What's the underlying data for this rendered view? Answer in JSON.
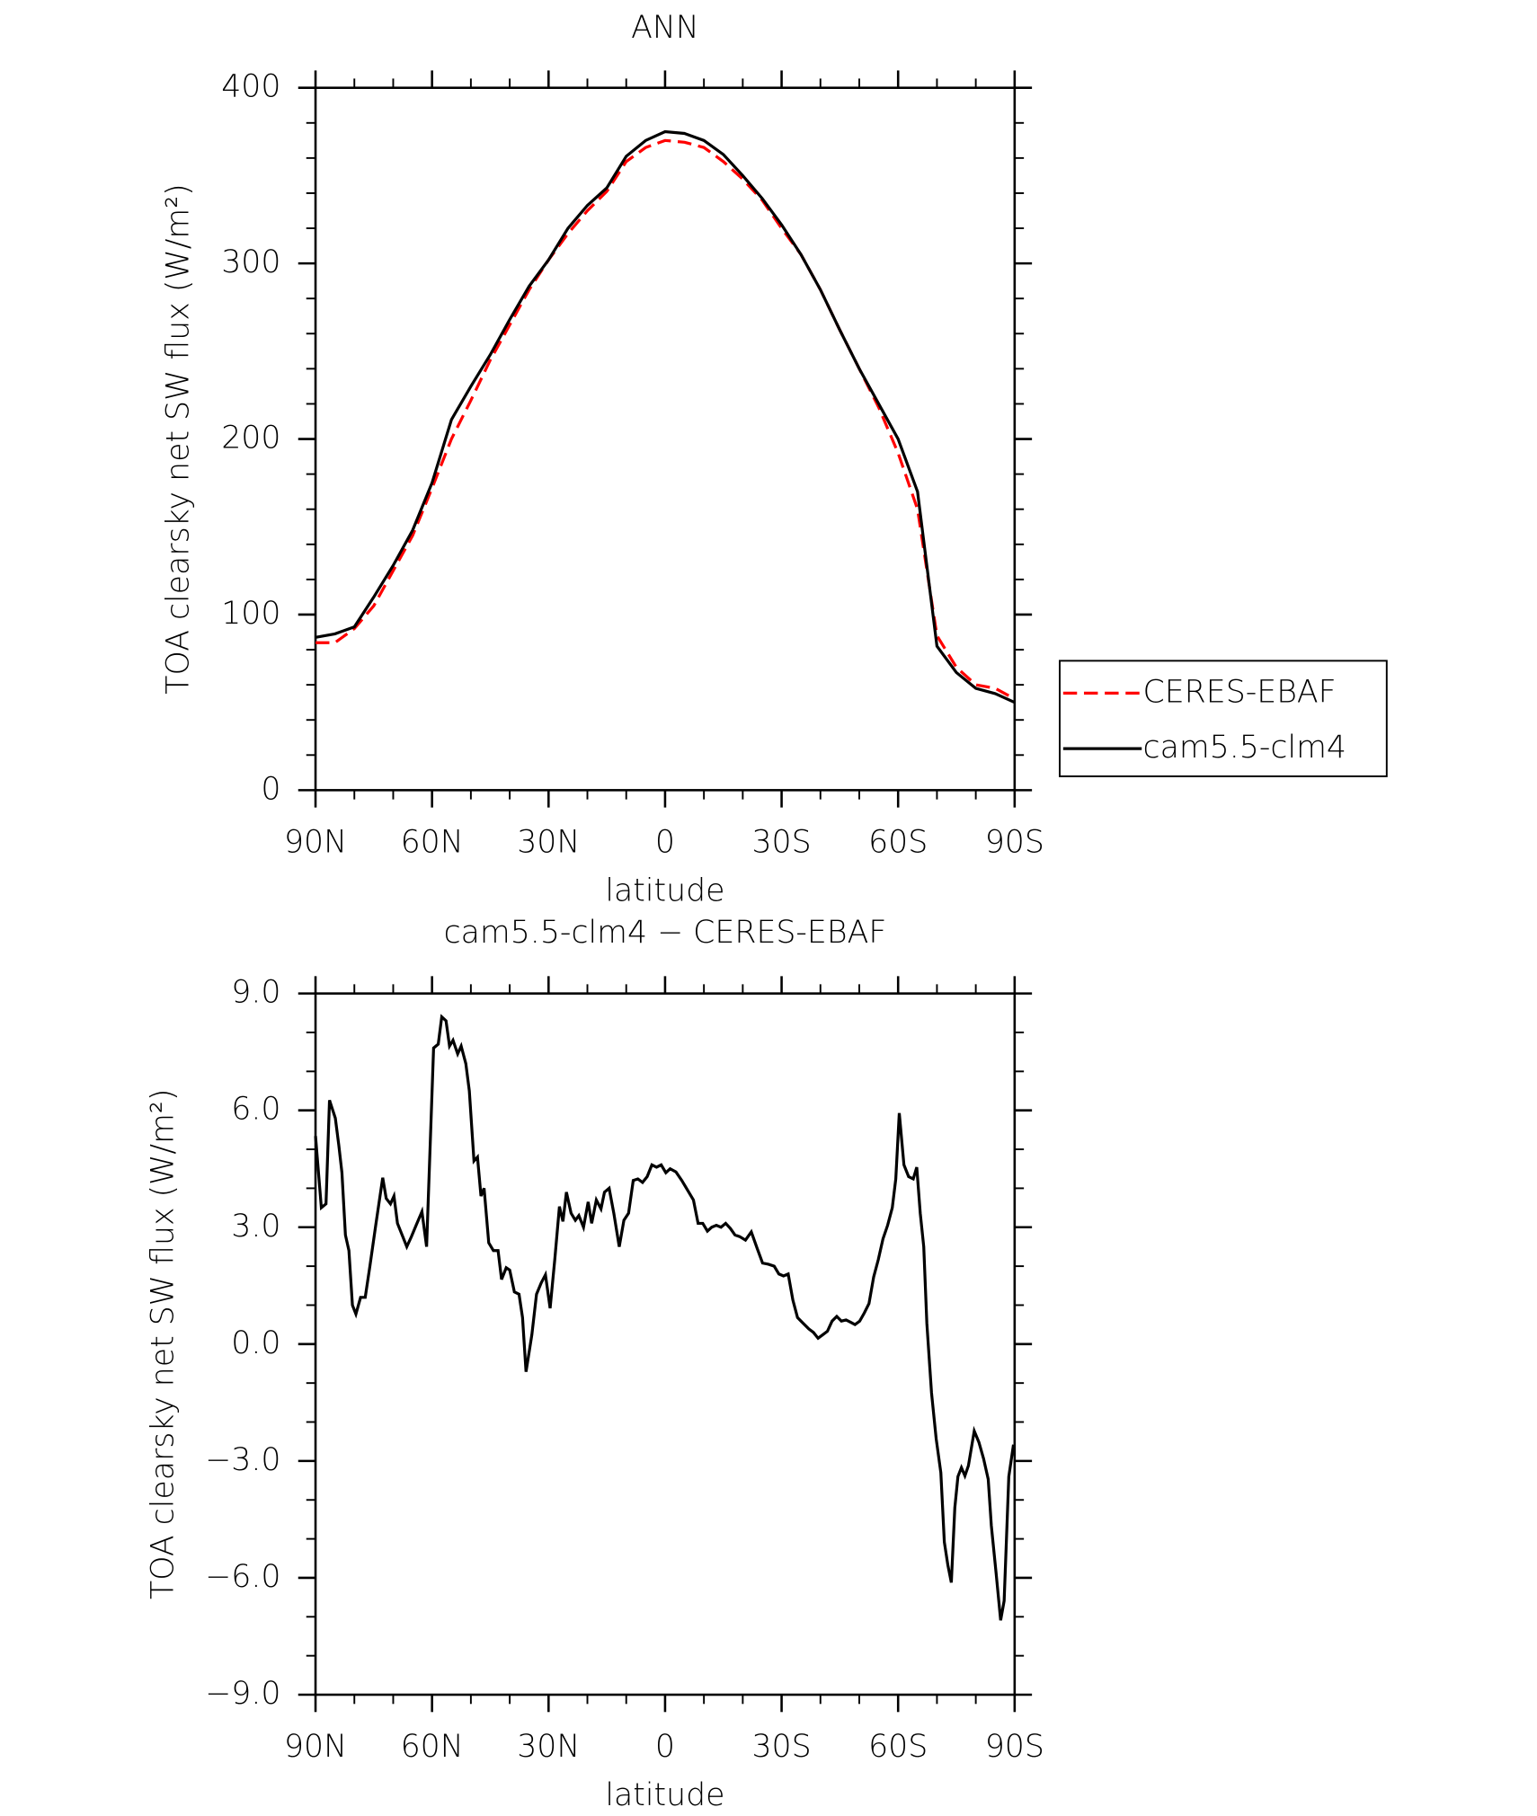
{
  "chart_data": [
    {
      "type": "line",
      "title": "ANN",
      "xlabel": "latitude",
      "ylabel": "TOA clearsky net SW flux (W/m²)",
      "x": [
        90,
        85,
        80,
        75,
        70,
        65,
        60,
        55,
        50,
        45,
        40,
        35,
        30,
        25,
        20,
        15,
        10,
        5,
        0,
        -5,
        -10,
        -15,
        -20,
        -25,
        -30,
        -35,
        -40,
        -45,
        -50,
        -55,
        -60,
        -65,
        -70,
        -75,
        -80,
        -85,
        -90
      ],
      "series": [
        {
          "name": "CERES-EBAF",
          "color": "#ff0000",
          "linestyle": "dashed",
          "values": [
            84,
            84,
            92,
            105,
            125,
            145,
            172,
            200,
            222,
            245,
            265,
            285,
            302,
            317,
            330,
            341,
            358,
            366,
            370,
            369,
            366,
            358,
            348,
            336,
            320,
            305,
            285,
            262,
            240,
            218,
            192,
            160,
            88,
            70,
            60,
            58,
            52
          ]
        },
        {
          "name": "cam5.5-clm4",
          "color": "#000000",
          "linestyle": "solid",
          "values": [
            87,
            89,
            93,
            110,
            128,
            148,
            175,
            211,
            230,
            248,
            268,
            287,
            302,
            320,
            333,
            343,
            361,
            370,
            375,
            374,
            370,
            362,
            350,
            337,
            322,
            305,
            285,
            262,
            240,
            220,
            200,
            170,
            82,
            67,
            58,
            55,
            50
          ]
        }
      ],
      "xlim": [
        90,
        -90
      ],
      "xticks": [
        {
          "value": 90,
          "label": "90N"
        },
        {
          "value": 60,
          "label": "60N"
        },
        {
          "value": 30,
          "label": "30N"
        },
        0,
        {
          "value": -30,
          "label": "30S"
        },
        {
          "value": -60,
          "label": "60S"
        },
        {
          "value": -90,
          "label": "90S"
        }
      ],
      "xminorticks": [
        80,
        70,
        50,
        40,
        20,
        10,
        -10,
        -20,
        -40,
        -50,
        -70,
        -80
      ],
      "ylim": [
        0,
        400
      ],
      "yticks": [
        0,
        100,
        200,
        300,
        400
      ],
      "yminorticks": [
        20,
        40,
        60,
        80,
        120,
        140,
        160,
        180,
        220,
        240,
        260,
        280,
        320,
        340,
        360,
        380
      ],
      "legend": "right"
    },
    {
      "type": "line",
      "title": "cam5.5-clm4 − CERES-EBAF",
      "xlabel": "latitude",
      "ylabel": "TOA clearsky net SW flux (W/m²)",
      "x": [
        90,
        88.5,
        87.3,
        86.4,
        84.9,
        84.0,
        83.2,
        82.3,
        81.4,
        80.5,
        79.6,
        78.4,
        77.2,
        76.0,
        74.5,
        72.7,
        71.8,
        70.7,
        69.8,
        68.9,
        67.7,
        66.5,
        65.3,
        64.1,
        62.6,
        61.4,
        59.6,
        58.4,
        57.5,
        56.4,
        55.5,
        54.6,
        53.4,
        52.5,
        51.3,
        50.4,
        49.2,
        48.3,
        47.4,
        46.6,
        45.4,
        44.2,
        43.0,
        42.1,
        40.9,
        40.0,
        38.8,
        37.6,
        36.7,
        35.8,
        34.3,
        33.1,
        31.9,
        30.8,
        29.6,
        28.4,
        27.2,
        26.3,
        25.4,
        24.2,
        23.1,
        22.2,
        21.0,
        19.8,
        18.9,
        17.7,
        16.5,
        15.6,
        14.4,
        13.2,
        11.8,
        10.6,
        9.4,
        8.2,
        7.0,
        5.8,
        4.6,
        3.4,
        2.2,
        1.0,
        -0.2,
        -1.3,
        -2.8,
        -4.3,
        -5.8,
        -7.3,
        -8.5,
        -9.7,
        -10.9,
        -12.0,
        -13.2,
        -14.4,
        -15.6,
        -16.8,
        -18.0,
        -19.2,
        -20.7,
        -22.2,
        -23.7,
        -25.1,
        -26.6,
        -28.1,
        -29.3,
        -30.5,
        -31.7,
        -32.9,
        -34.1,
        -35.6,
        -37.0,
        -38.2,
        -39.4,
        -40.6,
        -41.8,
        -43.0,
        -44.2,
        -45.4,
        -46.6,
        -47.8,
        -48.9,
        -50.1,
        -51.3,
        -52.5,
        -53.7,
        -54.9,
        -56.1,
        -57.3,
        -58.5,
        -59.4,
        -60.3,
        -61.5,
        -62.7,
        -63.9,
        -64.8,
        -65.7,
        -66.6,
        -67.4,
        -68.6,
        -69.8,
        -71.0,
        -71.9,
        -72.8,
        -73.7,
        -74.6,
        -75.4,
        -76.3,
        -77.2,
        -78.1,
        -79.6,
        -80.8,
        -82.0,
        -83.2,
        -84.0,
        -85.2,
        -86.4,
        -87.3,
        -88.5,
        -89.7
      ],
      "series": [
        {
          "name": "cam5.5-clm4 − CERES-EBAF",
          "color": "#000000",
          "values": [
            5.34,
            3.5,
            3.6,
            6.26,
            5.8,
            5.1,
            4.4,
            2.8,
            2.4,
            1.0,
            0.77,
            1.2,
            1.2,
            2.0,
            3.05,
            4.27,
            3.74,
            3.6,
            3.8,
            3.1,
            2.8,
            2.5,
            2.76,
            3.05,
            3.4,
            2.5,
            7.6,
            7.7,
            8.4,
            8.3,
            7.65,
            7.8,
            7.45,
            7.65,
            7.2,
            6.5,
            4.7,
            4.8,
            3.8,
            4.0,
            2.6,
            2.4,
            2.4,
            1.66,
            1.96,
            1.9,
            1.34,
            1.28,
            0.68,
            -0.71,
            0.24,
            1.28,
            1.57,
            1.78,
            0.92,
            2.17,
            3.53,
            3.15,
            3.9,
            3.36,
            3.18,
            3.3,
            3.0,
            3.65,
            3.1,
            3.7,
            3.47,
            3.9,
            4.0,
            3.36,
            2.5,
            3.18,
            3.36,
            4.2,
            4.24,
            4.15,
            4.3,
            4.6,
            4.54,
            4.6,
            4.4,
            4.5,
            4.42,
            4.2,
            3.95,
            3.7,
            3.1,
            3.1,
            2.9,
            3.0,
            3.05,
            3.0,
            3.1,
            2.97,
            2.8,
            2.76,
            2.67,
            2.88,
            2.46,
            2.08,
            2.05,
            2.0,
            1.8,
            1.75,
            1.8,
            1.13,
            0.68,
            0.53,
            0.39,
            0.3,
            0.15,
            0.24,
            0.33,
            0.59,
            0.71,
            0.59,
            0.62,
            0.56,
            0.5,
            0.59,
            0.8,
            1.04,
            1.72,
            2.17,
            2.7,
            3.05,
            3.5,
            4.24,
            5.93,
            4.6,
            4.3,
            4.24,
            4.54,
            3.36,
            2.5,
            0.53,
            -1.25,
            -2.43,
            -3.3,
            -5.08,
            -5.67,
            -6.12,
            -4.2,
            -3.4,
            -3.17,
            -3.38,
            -3.12,
            -2.23,
            -2.52,
            -2.94,
            -3.47,
            -4.66,
            -5.85,
            -7.09,
            -6.59,
            -3.4,
            -2.58
          ]
        }
      ],
      "xlim": [
        90,
        -90
      ],
      "xticks": [
        {
          "value": 90,
          "label": "90N"
        },
        {
          "value": 60,
          "label": "60N"
        },
        {
          "value": 30,
          "label": "30N"
        },
        0,
        {
          "value": -30,
          "label": "30S"
        },
        {
          "value": -60,
          "label": "60S"
        },
        {
          "value": -90,
          "label": "90S"
        }
      ],
      "xminorticks": [
        80,
        70,
        50,
        40,
        20,
        10,
        -10,
        -20,
        -40,
        -50,
        -70,
        -80
      ],
      "ylim": [
        -9,
        9
      ],
      "yticks": [
        {
          "value": -9,
          "label": "−9.0"
        },
        {
          "value": -6,
          "label": "−6.0"
        },
        {
          "value": -3,
          "label": "−3.0"
        },
        {
          "value": 0,
          "label": "0.0"
        },
        {
          "value": 3,
          "label": "3.0"
        },
        {
          "value": 6,
          "label": "6.0"
        },
        {
          "value": 9,
          "label": "9.0"
        }
      ],
      "yminorticks": [
        -8,
        -7,
        -5,
        -4,
        -2,
        -1,
        1,
        2,
        4,
        5,
        7,
        8
      ]
    }
  ]
}
